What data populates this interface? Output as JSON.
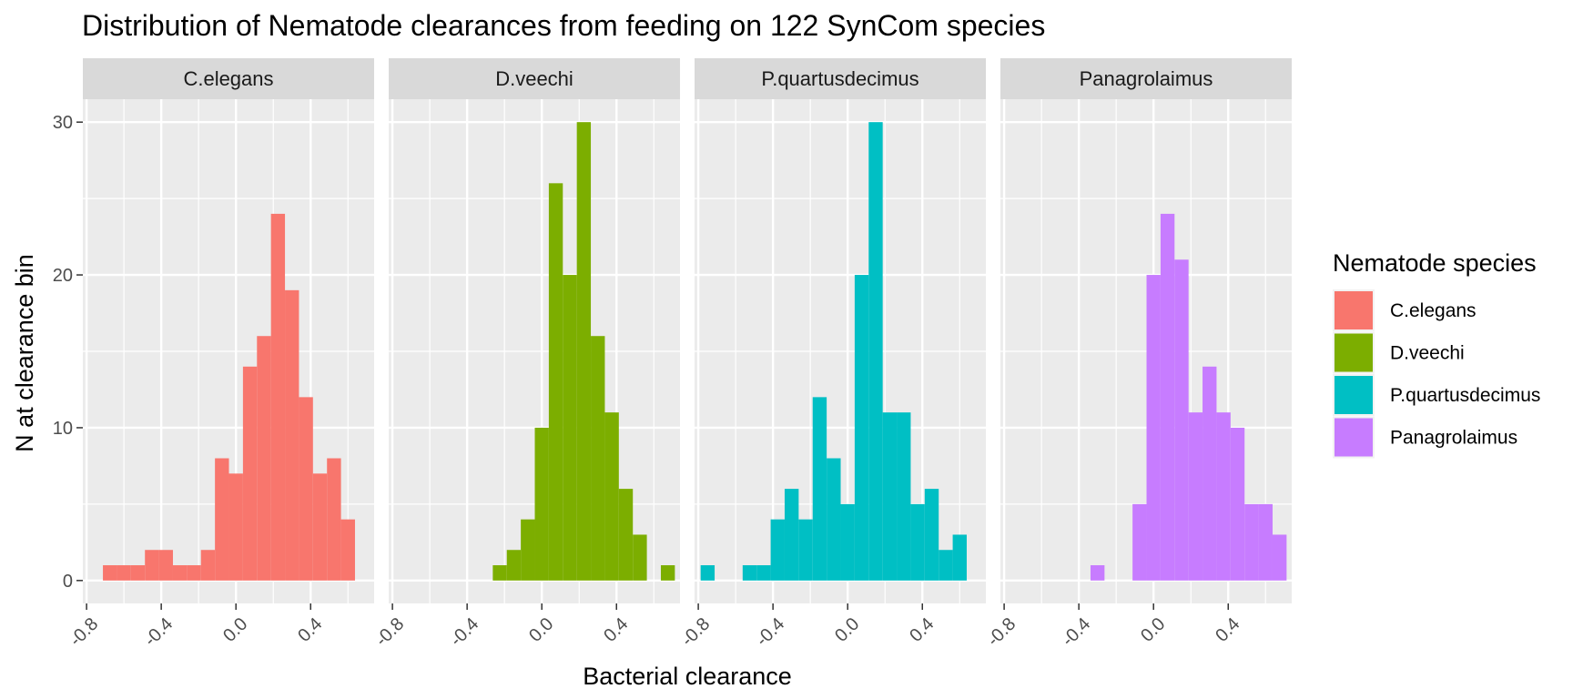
{
  "chart_data": {
    "type": "bar",
    "title": "Distribution of Nematode clearances from feeding on 122 SynCom species",
    "xlabel": "Bacterial clearance",
    "ylabel": "N at clearance bin",
    "xlim": [
      -0.82,
      0.74
    ],
    "ylim": [
      -1.5,
      31.5
    ],
    "bin_width": 0.075,
    "x_ticks": [
      -0.8,
      -0.4,
      0.0,
      0.4
    ],
    "x_tick_labels": [
      "-0.8",
      "-0.4",
      "0.0",
      "0.4"
    ],
    "y_ticks": [
      0,
      10,
      20,
      30
    ],
    "y_tick_labels": [
      "0",
      "10",
      "20",
      "30"
    ],
    "grid": true,
    "legend": {
      "title": "Nematode species",
      "position": "right",
      "entries": [
        "C.elegans",
        "D.veechi",
        "P.quartusdecimus",
        "Panagrolaimus"
      ]
    },
    "series": [
      {
        "name": "C.elegans",
        "color": "#F8766D",
        "bins": [
          {
            "x": -0.675,
            "count": 1
          },
          {
            "x": -0.6,
            "count": 1
          },
          {
            "x": -0.525,
            "count": 1
          },
          {
            "x": -0.45,
            "count": 2
          },
          {
            "x": -0.375,
            "count": 2
          },
          {
            "x": -0.3,
            "count": 1
          },
          {
            "x": -0.225,
            "count": 1
          },
          {
            "x": -0.15,
            "count": 2
          },
          {
            "x": -0.075,
            "count": 8
          },
          {
            "x": 0.0,
            "count": 7
          },
          {
            "x": 0.075,
            "count": 14
          },
          {
            "x": 0.15,
            "count": 16
          },
          {
            "x": 0.225,
            "count": 24
          },
          {
            "x": 0.3,
            "count": 19
          },
          {
            "x": 0.375,
            "count": 12
          },
          {
            "x": 0.45,
            "count": 7
          },
          {
            "x": 0.525,
            "count": 8
          },
          {
            "x": 0.6,
            "count": 4
          }
        ]
      },
      {
        "name": "D.veechi",
        "color": "#7CAE00",
        "bins": [
          {
            "x": -0.225,
            "count": 1
          },
          {
            "x": -0.15,
            "count": 2
          },
          {
            "x": -0.075,
            "count": 4
          },
          {
            "x": 0.0,
            "count": 10
          },
          {
            "x": 0.075,
            "count": 26
          },
          {
            "x": 0.15,
            "count": 20
          },
          {
            "x": 0.225,
            "count": 30
          },
          {
            "x": 0.3,
            "count": 16
          },
          {
            "x": 0.375,
            "count": 11
          },
          {
            "x": 0.45,
            "count": 6
          },
          {
            "x": 0.525,
            "count": 3
          },
          {
            "x": 0.675,
            "count": 1
          }
        ]
      },
      {
        "name": "P.quartusdecimus",
        "color": "#00BFC4",
        "bins": [
          {
            "x": -0.75,
            "count": 1
          },
          {
            "x": -0.525,
            "count": 1
          },
          {
            "x": -0.45,
            "count": 1
          },
          {
            "x": -0.375,
            "count": 4
          },
          {
            "x": -0.3,
            "count": 6
          },
          {
            "x": -0.225,
            "count": 4
          },
          {
            "x": -0.15,
            "count": 12
          },
          {
            "x": -0.075,
            "count": 8
          },
          {
            "x": 0.0,
            "count": 5
          },
          {
            "x": 0.075,
            "count": 20
          },
          {
            "x": 0.15,
            "count": 30
          },
          {
            "x": 0.225,
            "count": 11
          },
          {
            "x": 0.3,
            "count": 11
          },
          {
            "x": 0.375,
            "count": 5
          },
          {
            "x": 0.45,
            "count": 6
          },
          {
            "x": 0.525,
            "count": 2
          },
          {
            "x": 0.6,
            "count": 3
          }
        ]
      },
      {
        "name": "Panagrolaimus",
        "color": "#C77CFF",
        "bins": [
          {
            "x": -0.3,
            "count": 1
          },
          {
            "x": -0.075,
            "count": 5
          },
          {
            "x": 0.0,
            "count": 20
          },
          {
            "x": 0.075,
            "count": 24
          },
          {
            "x": 0.15,
            "count": 21
          },
          {
            "x": 0.225,
            "count": 11
          },
          {
            "x": 0.3,
            "count": 14
          },
          {
            "x": 0.375,
            "count": 11
          },
          {
            "x": 0.45,
            "count": 10
          },
          {
            "x": 0.525,
            "count": 5
          },
          {
            "x": 0.6,
            "count": 5
          },
          {
            "x": 0.675,
            "count": 3
          }
        ]
      }
    ]
  }
}
